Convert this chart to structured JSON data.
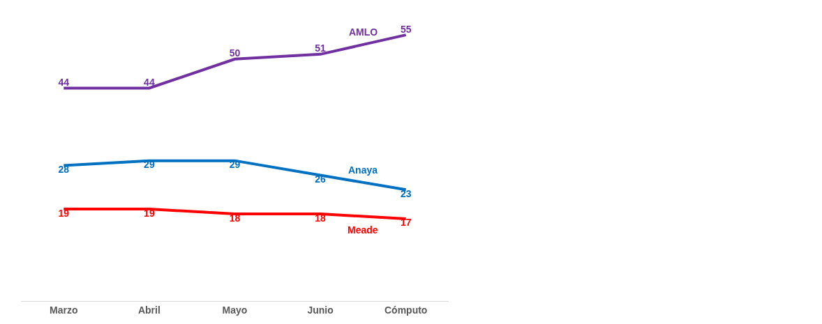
{
  "chart_data": {
    "type": "line",
    "categories": [
      "Marzo",
      "Abril",
      "Mayo",
      "Junio",
      "Cómputo"
    ],
    "series": [
      {
        "name": "AMLO",
        "color": "#7030a0",
        "values": [
          44,
          44,
          50,
          51,
          55
        ]
      },
      {
        "name": "Anaya",
        "color": "#0070c0",
        "values": [
          28,
          29,
          29,
          26,
          23
        ]
      },
      {
        "name": "Meade",
        "color": "#ff0000",
        "values": [
          19,
          19,
          18,
          18,
          17
        ]
      }
    ],
    "tick_labels": "x",
    "data_labels": true,
    "legend": false,
    "marker": "none",
    "line_style": "solid"
  }
}
